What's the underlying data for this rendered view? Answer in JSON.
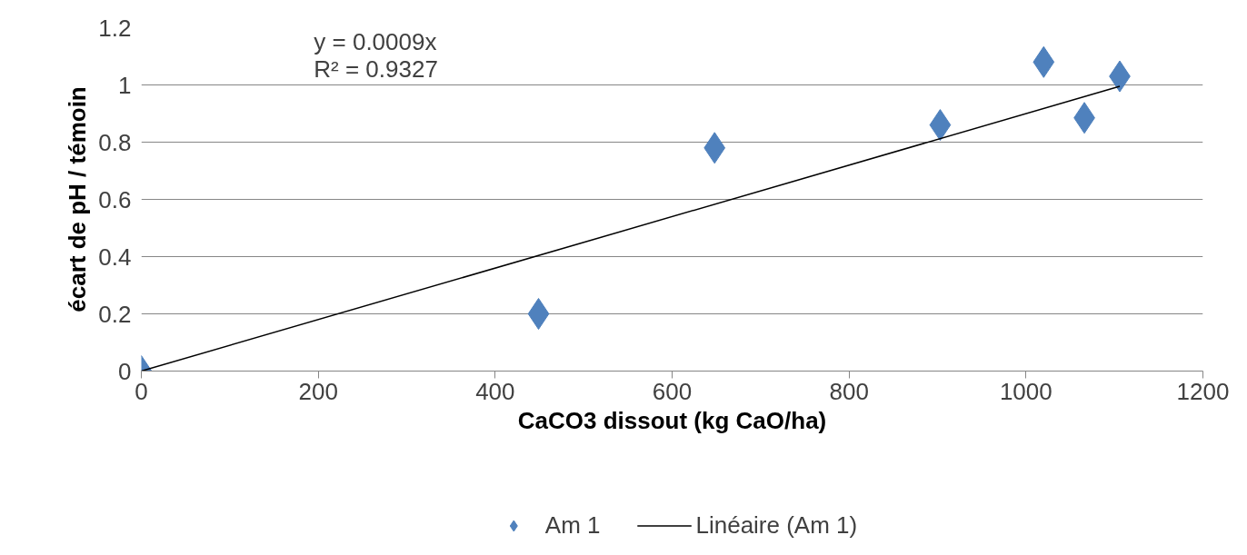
{
  "chart_data": {
    "type": "scatter",
    "xlabel": "CaCO3 dissout (kg CaO/ha)",
    "ylabel": "écart de pH / témoin",
    "annotations": [
      "y = 0.0009x",
      "R² = 0.9327"
    ],
    "x": [
      0,
      449,
      648,
      903,
      1020,
      1066,
      1106
    ],
    "series": [
      {
        "name": "Am 1",
        "marker": "diamond",
        "color": "#4f81bd",
        "values": [
          0,
          0.2,
          0.78,
          0.86,
          1.08,
          0.885,
          1.03
        ]
      },
      {
        "name": "Linéaire (Am 1)",
        "type": "line",
        "marker": "none",
        "color": "#000000",
        "x": [
          0,
          1106
        ],
        "values": [
          0,
          0.995
        ]
      }
    ],
    "xlim": [
      0,
      1200
    ],
    "xticks": [
      0,
      200,
      400,
      600,
      800,
      1000,
      1200
    ],
    "ylim": [
      0,
      1.2
    ],
    "yticks": [
      {
        "value": 0,
        "label": "0"
      },
      0.2,
      0.4,
      0.6,
      0.8,
      {
        "value": 1,
        "label": "1"
      },
      1.2
    ],
    "grid": "y",
    "legend": "bottom",
    "line_style": "solid"
  }
}
